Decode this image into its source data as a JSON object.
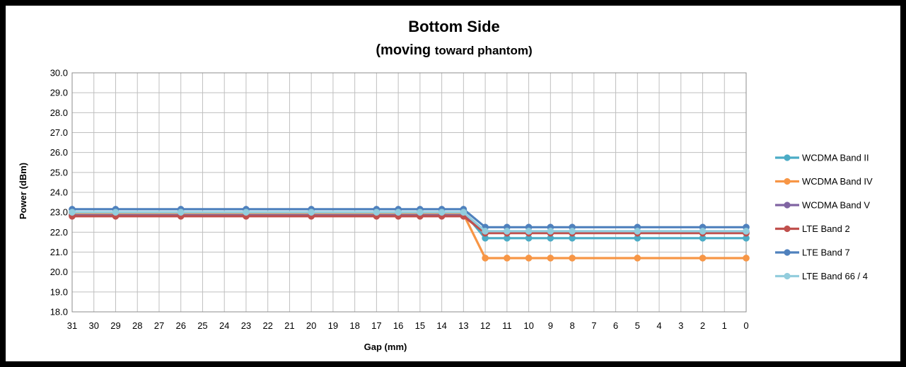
{
  "chart_data": {
    "type": "line",
    "title": "Bottom Side",
    "subtitle_parts": [
      "(moving ",
      "toward",
      " phantom)"
    ],
    "xlabel": "Gap (mm)",
    "ylabel": "Power (dBm)",
    "x_ticks": [
      31,
      30,
      29,
      28,
      27,
      26,
      25,
      24,
      23,
      22,
      21,
      20,
      19,
      18,
      17,
      16,
      15,
      14,
      13,
      12,
      11,
      10,
      9,
      8,
      7,
      6,
      5,
      4,
      3,
      2,
      1,
      0
    ],
    "x_reversed": true,
    "xlim": [
      31,
      0
    ],
    "ylim": [
      18.0,
      30.0
    ],
    "y_ticks": [
      "18.0",
      "19.0",
      "20.0",
      "21.0",
      "22.0",
      "23.0",
      "24.0",
      "25.0",
      "26.0",
      "27.0",
      "28.0",
      "29.0",
      "30.0"
    ],
    "grid": true,
    "legend_position": "right",
    "x": [
      31,
      29,
      26,
      23,
      20,
      17,
      16,
      15,
      14,
      13,
      12,
      11,
      10,
      9,
      8,
      5,
      2,
      0
    ],
    "series": [
      {
        "name": "WCDMA Band II",
        "color": "#4bacc6",
        "values": [
          23.0,
          23.0,
          23.0,
          23.0,
          23.0,
          23.0,
          23.0,
          23.0,
          23.0,
          23.0,
          21.7,
          21.7,
          21.7,
          21.7,
          21.7,
          21.7,
          21.7,
          21.7
        ]
      },
      {
        "name": "WCDMA Band IV",
        "color": "#f79646",
        "values": [
          22.9,
          22.9,
          22.9,
          22.9,
          22.9,
          22.9,
          22.9,
          22.9,
          22.9,
          22.9,
          20.7,
          20.7,
          20.7,
          20.7,
          20.7,
          20.7,
          20.7,
          20.7
        ]
      },
      {
        "name": "WCDMA Band V",
        "color": "#8064a2",
        "values": [
          22.85,
          22.85,
          22.85,
          22.85,
          22.85,
          22.85,
          22.85,
          22.85,
          22.85,
          22.85,
          22.0,
          22.0,
          22.0,
          22.0,
          22.0,
          22.0,
          22.0,
          22.0
        ]
      },
      {
        "name": "LTE Band 2",
        "color": "#c0504d",
        "values": [
          22.8,
          22.8,
          22.8,
          22.8,
          22.8,
          22.8,
          22.8,
          22.8,
          22.8,
          22.8,
          21.95,
          21.95,
          21.95,
          21.95,
          21.95,
          21.95,
          21.95,
          21.95
        ]
      },
      {
        "name": "LTE Band 7",
        "color": "#4f81bd",
        "values": [
          23.15,
          23.15,
          23.15,
          23.15,
          23.15,
          23.15,
          23.15,
          23.15,
          23.15,
          23.15,
          22.25,
          22.25,
          22.25,
          22.25,
          22.25,
          22.25,
          22.25,
          22.25
        ]
      },
      {
        "name": "LTE Band 66 / 4",
        "color": "#93cddd",
        "values": [
          23.0,
          23.0,
          23.0,
          23.0,
          23.0,
          23.0,
          23.0,
          23.0,
          23.0,
          23.0,
          22.05,
          22.05,
          22.05,
          22.05,
          22.05,
          22.05,
          22.05,
          22.05
        ]
      }
    ],
    "plot_background": "#ffffff",
    "grid_color": "#bfbfbf",
    "frame_color": "#000000"
  }
}
